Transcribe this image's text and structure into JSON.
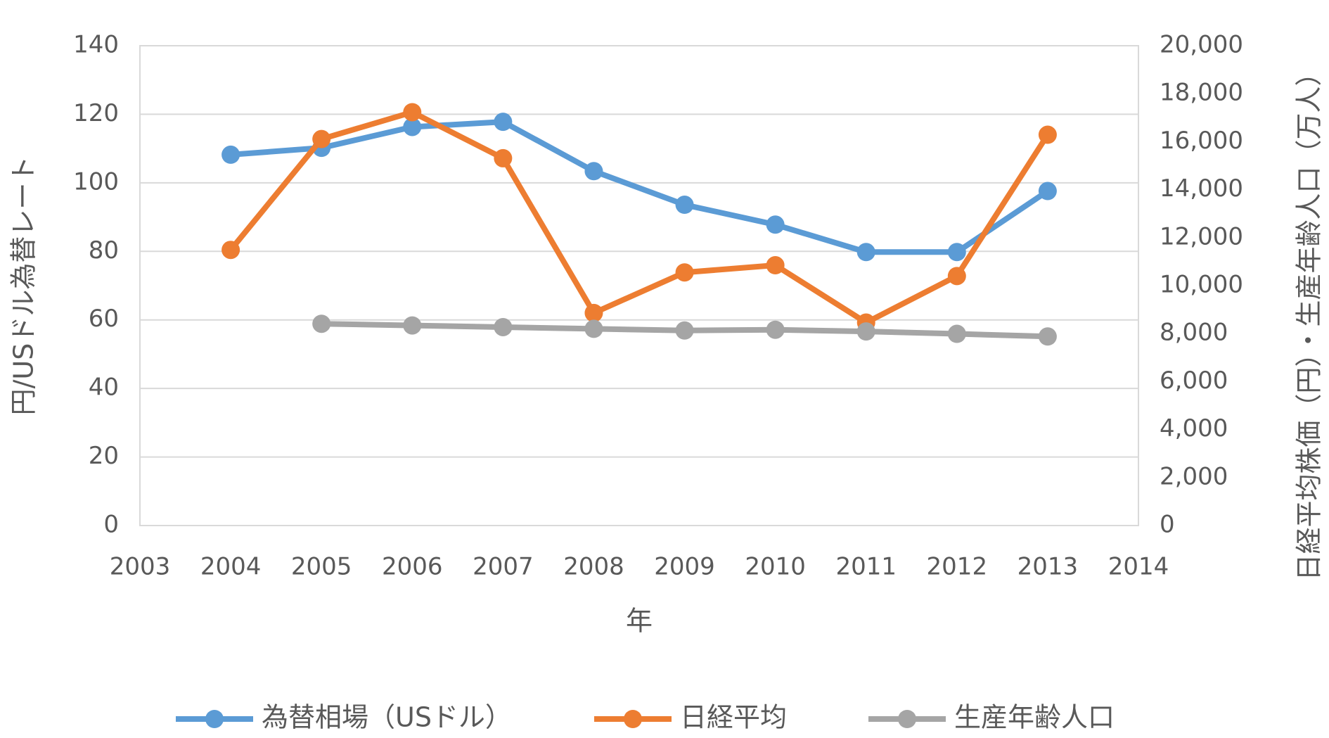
{
  "chart_data": {
    "type": "line",
    "x_label": "年",
    "y_label": "円/USドル為替レート",
    "y2_label": "日経平均株価（円）・生産年齢人口（万人）",
    "x": [
      2004,
      2005,
      2006,
      2007,
      2008,
      2009,
      2010,
      2011,
      2012,
      2013
    ],
    "xlim": [
      2003,
      2014
    ],
    "xticks": [
      2003,
      2004,
      2005,
      2006,
      2007,
      2008,
      2009,
      2010,
      2011,
      2012,
      2013,
      2014
    ],
    "ylim": [
      0,
      140
    ],
    "yticks": [
      0,
      20,
      40,
      60,
      80,
      100,
      120,
      140
    ],
    "y2lim": [
      0,
      20000
    ],
    "y2ticks": [
      0,
      {
        "value": 2000,
        "label": "2,000"
      },
      {
        "value": 4000,
        "label": "4,000"
      },
      {
        "value": 6000,
        "label": "6,000"
      },
      {
        "value": 8000,
        "label": "8,000"
      },
      {
        "value": 10000,
        "label": "10,000"
      },
      {
        "value": 12000,
        "label": "12,000"
      },
      {
        "value": 14000,
        "label": "14,000"
      },
      {
        "value": 16000,
        "label": "16,000"
      },
      {
        "value": 18000,
        "label": "18,000"
      },
      {
        "value": 20000,
        "label": "20,000"
      }
    ],
    "grid": true,
    "legend": "bottom",
    "series": [
      {
        "name": "為替相場（USドル）",
        "color": "#5b9bd5",
        "values": [
          108.2,
          110.2,
          116.3,
          117.8,
          103.4,
          93.6,
          87.8,
          79.8,
          79.8,
          97.6
        ]
      },
      {
        "name": "日経平均",
        "color": "#ed7d31",
        "axis": "y2",
        "values": [
          11490,
          16110,
          17230,
          15310,
          8860,
          10550,
          10850,
          8460,
          10400,
          16290
        ]
      },
      {
        "name": "生産年齢人口",
        "color": "#a5a5a5",
        "axis": "y2",
        "values": [
          null,
          8410,
          8340,
          8270,
          8200,
          8130,
          8160,
          8090,
          7990,
          7880
        ]
      }
    ]
  }
}
